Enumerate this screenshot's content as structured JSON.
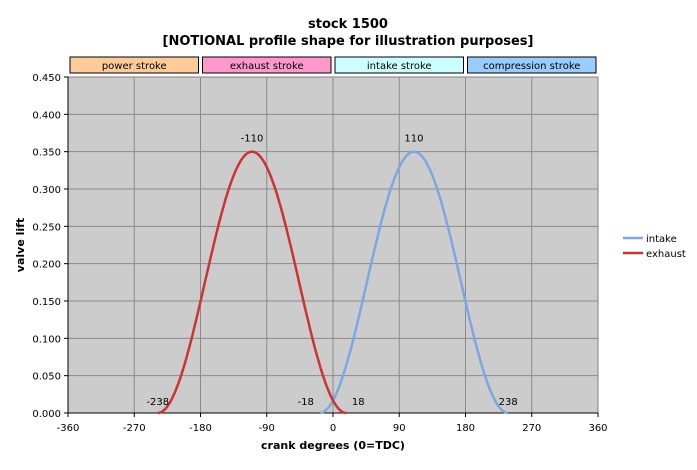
{
  "chart_data": {
    "type": "line",
    "title": "stock 1500",
    "subtitle": "[NOTIONAL profile shape for illustration purposes]",
    "xlabel": "crank degrees (0=TDC)",
    "ylabel": "valve lift",
    "xlim": [
      -360,
      360
    ],
    "ylim": [
      0,
      0.45
    ],
    "xticks": [
      -360,
      -270,
      -180,
      -90,
      0,
      90,
      180,
      270,
      360
    ],
    "yticks": [
      "0.000",
      "0.050",
      "0.100",
      "0.150",
      "0.200",
      "0.250",
      "0.300",
      "0.350",
      "0.400",
      "0.450"
    ],
    "grid": true,
    "legend": "right",
    "strokes": [
      {
        "label": "power stroke",
        "from": -360,
        "to": -180,
        "color": "#ffcc99"
      },
      {
        "label": "exhaust stroke",
        "from": -180,
        "to": 0,
        "color": "#ff99cc"
      },
      {
        "label": "intake stroke",
        "from": 0,
        "to": 180,
        "color": "#ccffff"
      },
      {
        "label": "compression stroke",
        "from": 180,
        "to": 360,
        "color": "#99ccff"
      }
    ],
    "series": [
      {
        "name": "intake",
        "color": "#7ea6e0",
        "x": [
          -18,
          0,
          23,
          46,
          69,
          92,
          110,
          128,
          151,
          174,
          197,
          220,
          238
        ],
        "y": [
          0.0,
          0.04,
          0.123,
          0.212,
          0.286,
          0.334,
          0.35,
          0.334,
          0.286,
          0.212,
          0.123,
          0.04,
          0.0
        ]
      },
      {
        "name": "exhaust",
        "color": "#cc3333",
        "x": [
          -238,
          -220,
          -197,
          -174,
          -151,
          -128,
          -110,
          -92,
          -69,
          -46,
          -23,
          0,
          18
        ],
        "y": [
          0.0,
          0.04,
          0.123,
          0.212,
          0.286,
          0.334,
          0.35,
          0.334,
          0.286,
          0.212,
          0.123,
          0.04,
          0.0
        ]
      }
    ],
    "annotations": [
      {
        "text": "-110",
        "x": -110,
        "y": 0.35
      },
      {
        "text": "110",
        "x": 110,
        "y": 0.35
      },
      {
        "text": "-238",
        "x": -238,
        "y": 0
      },
      {
        "text": "-18",
        "x": -18,
        "y": 0
      },
      {
        "text": "18",
        "x": 18,
        "y": 0
      },
      {
        "text": "238",
        "x": 238,
        "y": 0
      }
    ]
  }
}
